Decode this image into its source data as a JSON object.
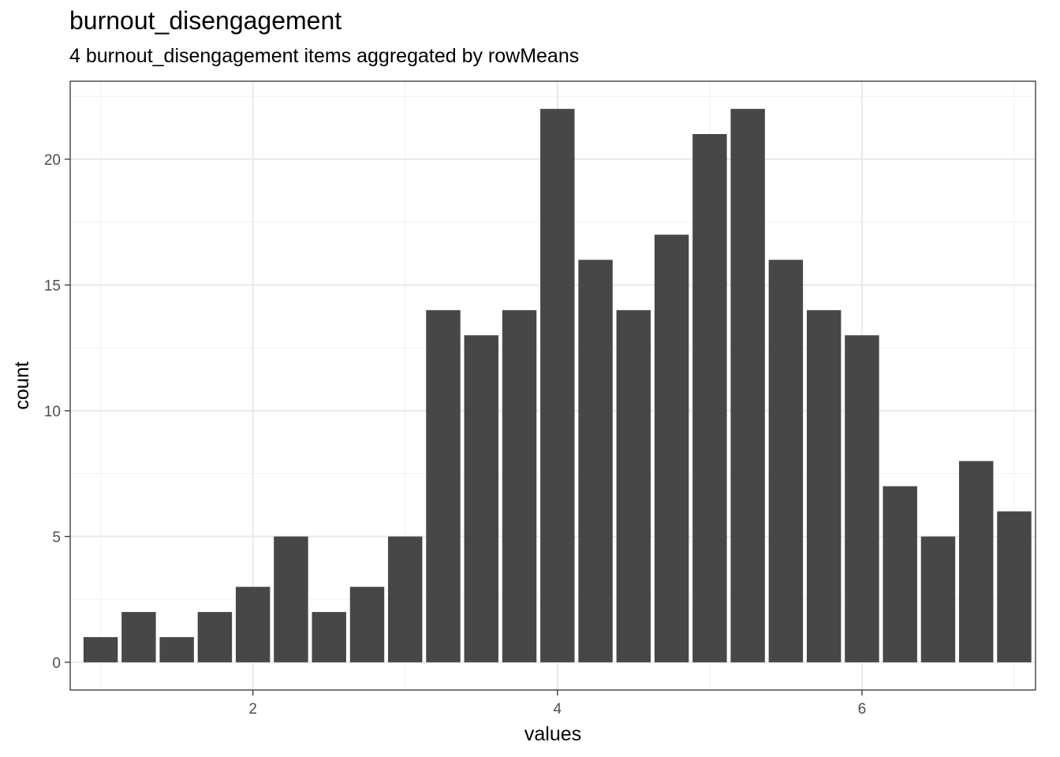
{
  "chart_data": {
    "type": "bar",
    "title": "burnout_disengagement",
    "subtitle": "4 burnout_disengagement items aggregated by rowMeans",
    "xlabel": "values",
    "ylabel": "count",
    "x": [
      1.0,
      1.25,
      1.5,
      1.75,
      2.0,
      2.25,
      2.5,
      2.75,
      3.0,
      3.25,
      3.5,
      3.75,
      4.0,
      4.25,
      4.5,
      4.75,
      5.0,
      5.25,
      5.5,
      5.75,
      6.0,
      6.25,
      6.5,
      6.75,
      7.0
    ],
    "values": [
      1,
      2,
      1,
      2,
      3,
      5,
      2,
      3,
      5,
      14,
      13,
      14,
      22,
      16,
      14,
      17,
      21,
      22,
      16,
      14,
      13,
      7,
      5,
      8,
      6
    ],
    "bar_width": 0.225,
    "xlim": [
      0.8,
      7.14
    ],
    "ylim": [
      -1.1,
      23.1
    ],
    "x_ticks": [
      2,
      4,
      6
    ],
    "y_ticks": [
      0,
      5,
      10,
      15,
      20
    ],
    "grid": true,
    "colors": {
      "bar": "#474747",
      "panel_border": "#333333",
      "grid_major": "#ebebeb",
      "grid_minor": "#f2f2f2"
    }
  }
}
